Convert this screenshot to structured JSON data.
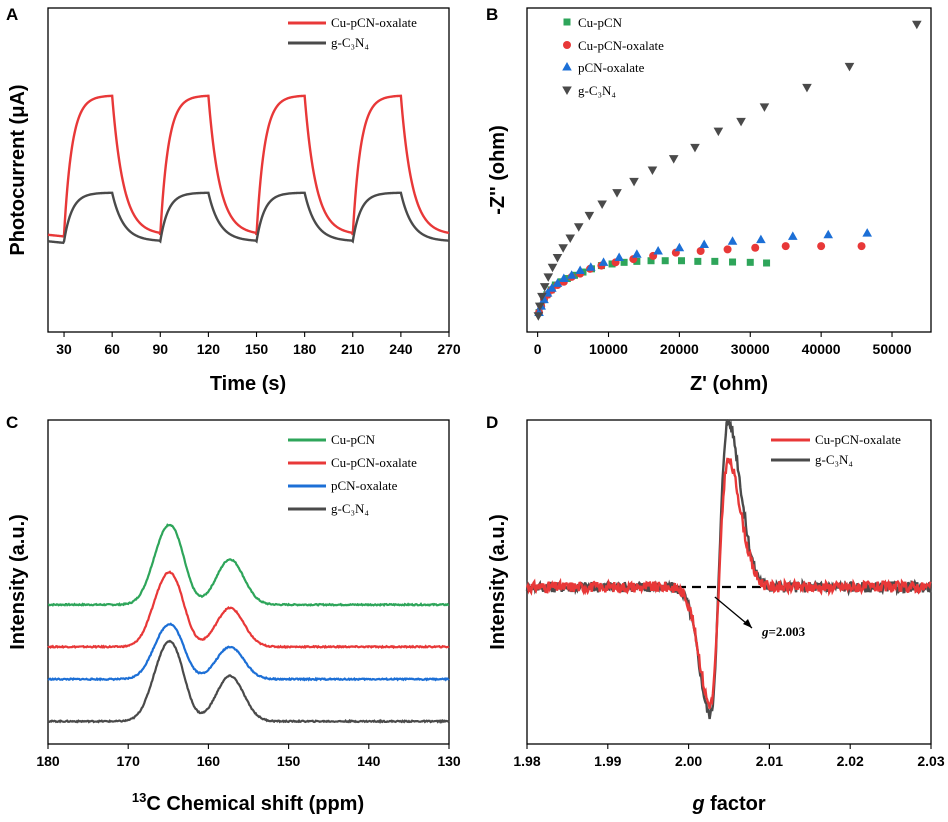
{
  "colors": {
    "red": "#e83838",
    "dark": "#4a4a4a",
    "green": "#2ea55a",
    "blue": "#1c6fd6"
  },
  "chart_data": [
    {
      "panel": "A",
      "type": "line",
      "xlabel": "Time (s)",
      "ylabel": "Photocurrent (μA)",
      "xlim": [
        20,
        270
      ],
      "ylim": [
        0,
        1
      ],
      "xticks": [
        "30",
        "60",
        "90",
        "120",
        "150",
        "180",
        "210",
        "240",
        "270"
      ],
      "y_tick_labels": false,
      "light_on_times": [
        30,
        90,
        150,
        210
      ],
      "light_off_times": [
        60,
        120,
        180,
        240
      ],
      "series": [
        {
          "name": "Cu-pCN-oxalate",
          "color_key": "red",
          "dark_level": 0.3,
          "light_plateau": 0.73
        },
        {
          "name": "g-C3N4",
          "display_name": "g-C₃N₄",
          "color_key": "dark",
          "dark_level": 0.28,
          "light_plateau": 0.43
        }
      ],
      "legend_position": "top-right"
    },
    {
      "panel": "B",
      "type": "scatter",
      "xlabel": "Z' (ohm)",
      "ylabel": "-Z'' (ohm)",
      "xlim": [
        -1500,
        55500
      ],
      "ylim": [
        0,
        100
      ],
      "xticks": [
        "0",
        "10000",
        "20000",
        "30000",
        "40000",
        "50000"
      ],
      "y_tick_labels": false,
      "legend_position": "top-left",
      "series": [
        {
          "name": "Cu-pCN",
          "marker": "square",
          "color_key": "green",
          "x": [
            200,
            500,
            900,
            1300,
            1900,
            2500,
            3300,
            4200,
            5200,
            6400,
            7600,
            9000,
            10500,
            12200,
            14000,
            16000,
            18000,
            20300,
            22600,
            25000,
            27500,
            30000,
            32300
          ],
          "y": [
            6,
            8,
            10,
            11.5,
            13,
            14.5,
            15.5,
            16.5,
            17.5,
            18.5,
            19.5,
            20.5,
            21,
            21.5,
            21.8,
            22,
            22,
            22,
            21.8,
            21.8,
            21.6,
            21.5,
            21.3
          ]
        },
        {
          "name": "Cu-pCN-oxalate",
          "marker": "circle",
          "color_key": "red",
          "x": [
            200,
            500,
            900,
            1400,
            2000,
            2800,
            3700,
            4800,
            6000,
            7400,
            9000,
            11000,
            13500,
            16300,
            19500,
            23000,
            26800,
            30700,
            35000,
            40000,
            45700
          ],
          "y": [
            6,
            8,
            10,
            11.5,
            13,
            14.5,
            15.5,
            17,
            18,
            19.5,
            20.5,
            21.5,
            22.5,
            23.5,
            24.5,
            25,
            25.5,
            26,
            26.5,
            26.5,
            26.5
          ]
        },
        {
          "name": "pCN-oxalate",
          "marker": "triangle-up",
          "color_key": "blue",
          "x": [
            200,
            500,
            900,
            1400,
            2000,
            2800,
            3700,
            4800,
            6000,
            7500,
            9300,
            11500,
            14000,
            17000,
            20000,
            23500,
            27500,
            31500,
            36000,
            41000,
            46500
          ],
          "y": [
            6,
            8,
            10,
            12,
            13.5,
            15,
            16.5,
            17.5,
            19,
            20,
            21.5,
            23,
            24,
            25,
            26,
            27,
            28,
            28.5,
            29.5,
            30,
            30.5
          ]
        },
        {
          "name": "g-C3N4",
          "display_name": "g-C₃N₄",
          "marker": "triangle-down",
          "color_key": "dark",
          "x": [
            100,
            300,
            600,
            1000,
            1500,
            2100,
            2800,
            3600,
            4600,
            5800,
            7300,
            9100,
            11200,
            13600,
            16200,
            19200,
            22200,
            25500,
            28700,
            32000,
            38000,
            44000,
            53500
          ],
          "y": [
            5,
            8,
            11,
            14,
            17,
            20,
            23,
            26,
            29,
            32.5,
            36,
            39.5,
            43,
            46.5,
            50,
            53.5,
            57,
            62,
            65,
            69.5,
            75.5,
            82,
            95
          ]
        }
      ]
    },
    {
      "panel": "C",
      "type": "line",
      "xlabel": "13C Chemical shift (ppm)",
      "xlabel_superscript": "13",
      "xlabel_main": "C Chemical shift (ppm)",
      "ylabel": "Intensity (a.u.)",
      "xlim": [
        180,
        130
      ],
      "xticks": [
        "180",
        "170",
        "160",
        "150",
        "140",
        "130"
      ],
      "y_tick_labels": false,
      "legend_position": "top-right",
      "peak_positions_ppm": [
        165.5,
        163.8,
        157.3
      ],
      "series": [
        {
          "name": "Cu-pCN",
          "color_key": "green",
          "baseline": 0.43,
          "peak_heights": [
            0.19,
            0.1,
            0.14
          ]
        },
        {
          "name": "Cu-pCN-oxalate",
          "color_key": "red",
          "baseline": 0.3,
          "peak_heights": [
            0.18,
            0.09,
            0.12
          ]
        },
        {
          "name": "pCN-oxalate",
          "color_key": "blue",
          "baseline": 0.2,
          "peak_heights": [
            0.13,
            0.07,
            0.1
          ]
        },
        {
          "name": "g-C3N4",
          "display_name": "g-C₃N₄",
          "color_key": "dark",
          "baseline": 0.07,
          "peak_heights": [
            0.19,
            0.1,
            0.14
          ]
        }
      ]
    },
    {
      "panel": "D",
      "type": "line",
      "xlabel": "g factor",
      "xlabel_italic": "g",
      "xlabel_main": " factor",
      "ylabel": "Intensity (a.u.)",
      "xlim": [
        1.98,
        2.03
      ],
      "xticks": [
        "1.98",
        "1.99",
        "2.00",
        "2.01",
        "2.02",
        "2.03"
      ],
      "y_tick_labels": false,
      "legend_position": "top-right",
      "annotation": {
        "italic": "g",
        "rest": "=2.003",
        "x": 2.003
      },
      "baseline": 0.0,
      "series": [
        {
          "name": "Cu-pCN-oxalate",
          "color_key": "red",
          "min_value": -0.67,
          "max_value": 0.71
        },
        {
          "name": "g-C3N4",
          "display_name": "g-C₃N₄",
          "color_key": "dark",
          "min_value": -0.73,
          "max_value": 0.93
        }
      ]
    }
  ],
  "panel_letters": [
    "A",
    "B",
    "C",
    "D"
  ]
}
